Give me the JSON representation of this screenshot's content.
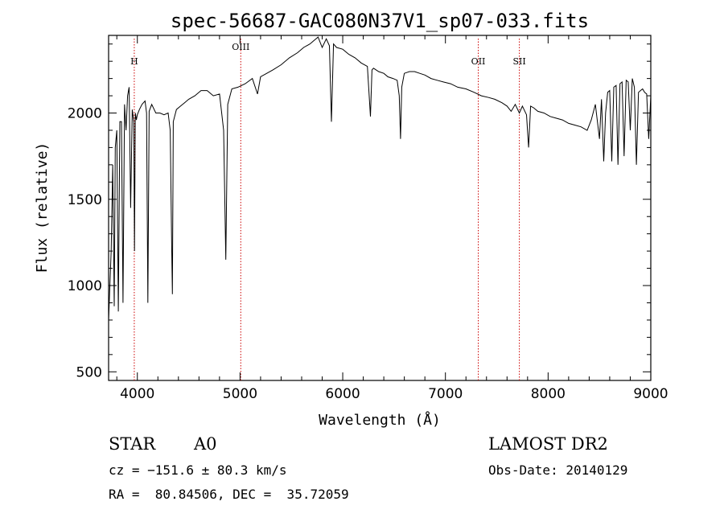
{
  "chart_data": {
    "type": "line",
    "title": "spec-56687-GAC080N37V1_sp07-033.fits",
    "xlabel": "Wavelength (Å)",
    "ylabel": "Flux (relative)",
    "xlim": [
      3720,
      9000
    ],
    "ylim": [
      450,
      2450
    ],
    "xticks": [
      4000,
      5000,
      6000,
      7000,
      8000,
      9000
    ],
    "yticks": [
      500,
      1000,
      1500,
      2000
    ],
    "grid": false,
    "series": [
      {
        "x": [
          3720,
          3745,
          3760,
          3775,
          3785,
          3800,
          3815,
          3830,
          3845,
          3860,
          3875,
          3890,
          3905,
          3920,
          3935,
          3950,
          3965,
          3972,
          3980,
          3990,
          4000,
          4020,
          4045,
          4075,
          4090,
          4102,
          4115,
          4140,
          4180,
          4220,
          4260,
          4300,
          4320,
          4335,
          4341,
          4350,
          4380,
          4420,
          4460,
          4500,
          4560,
          4620,
          4680,
          4740,
          4800,
          4840,
          4861,
          4880,
          4920,
          4980,
          5050,
          5120,
          5170,
          5200,
          5260,
          5320,
          5400,
          5480,
          5560,
          5620,
          5680,
          5720,
          5760,
          5800,
          5840,
          5870,
          5890,
          5910,
          5940,
          6000,
          6060,
          6120,
          6180,
          6240,
          6270,
          6285,
          6300,
          6350,
          6400,
          6440,
          6490,
          6530,
          6550,
          6563,
          6575,
          6600,
          6650,
          6700,
          6750,
          6800,
          6860,
          6920,
          6980,
          7050,
          7120,
          7200,
          7280,
          7350,
          7420,
          7480,
          7550,
          7600,
          7640,
          7680,
          7720,
          7750,
          7790,
          7810,
          7830,
          7860,
          7900,
          7960,
          8020,
          8080,
          8140,
          8200,
          8260,
          8320,
          8380,
          8420,
          8460,
          8500,
          8520,
          8542,
          8560,
          8580,
          8600,
          8620,
          8640,
          8662,
          8680,
          8700,
          8720,
          8740,
          8760,
          8780,
          8800,
          8820,
          8840,
          8860,
          8880,
          8900,
          8920,
          8940,
          8960,
          8980,
          9000
        ],
        "y": [
          800,
          1200,
          1700,
          880,
          1800,
          1900,
          850,
          1950,
          1950,
          900,
          2050,
          1900,
          2100,
          2150,
          1450,
          2020,
          1950,
          1200,
          2000,
          1960,
          1990,
          2020,
          2050,
          2070,
          2000,
          900,
          2010,
          2050,
          2000,
          2000,
          1990,
          2000,
          1900,
          1200,
          950,
          1950,
          2020,
          2040,
          2060,
          2080,
          2100,
          2130,
          2130,
          2100,
          2110,
          1900,
          1150,
          2050,
          2140,
          2150,
          2170,
          2200,
          2110,
          2210,
          2230,
          2250,
          2280,
          2320,
          2350,
          2380,
          2400,
          2420,
          2440,
          2380,
          2430,
          2390,
          1950,
          2400,
          2380,
          2370,
          2340,
          2320,
          2290,
          2270,
          1980,
          2250,
          2260,
          2240,
          2230,
          2210,
          2200,
          2190,
          2100,
          1850,
          2150,
          2230,
          2240,
          2240,
          2230,
          2220,
          2200,
          2190,
          2180,
          2170,
          2150,
          2140,
          2120,
          2100,
          2090,
          2080,
          2060,
          2040,
          2010,
          2050,
          2000,
          2040,
          1990,
          1800,
          2040,
          2030,
          2010,
          2000,
          1980,
          1970,
          1960,
          1940,
          1930,
          1920,
          1900,
          1960,
          2050,
          1850,
          2080,
          1720,
          2000,
          2120,
          2130,
          1720,
          2150,
          2160,
          1700,
          2170,
          2180,
          1750,
          2190,
          2180,
          1900,
          2200,
          2150,
          1700,
          2120,
          2130,
          2140,
          2120,
          2110,
          1850,
          2100
        ]
      }
    ],
    "markers": [
      {
        "label": "H",
        "x": 3970
      },
      {
        "label": "OIII",
        "x": 5007
      },
      {
        "label": "OII",
        "x": 7320
      },
      {
        "label": "SII",
        "x": 7720
      }
    ]
  },
  "info": {
    "object_type": "STAR",
    "spectral_class": "A0",
    "survey": "LAMOST DR2",
    "cz": "cz = −151.6 ± 80.3 km/s",
    "obs_date": "Obs-Date: 20140129",
    "radec": "RA =  80.84506, DEC =  35.72059"
  },
  "colors": {
    "line": "#000000",
    "marker": "#cc0000"
  }
}
